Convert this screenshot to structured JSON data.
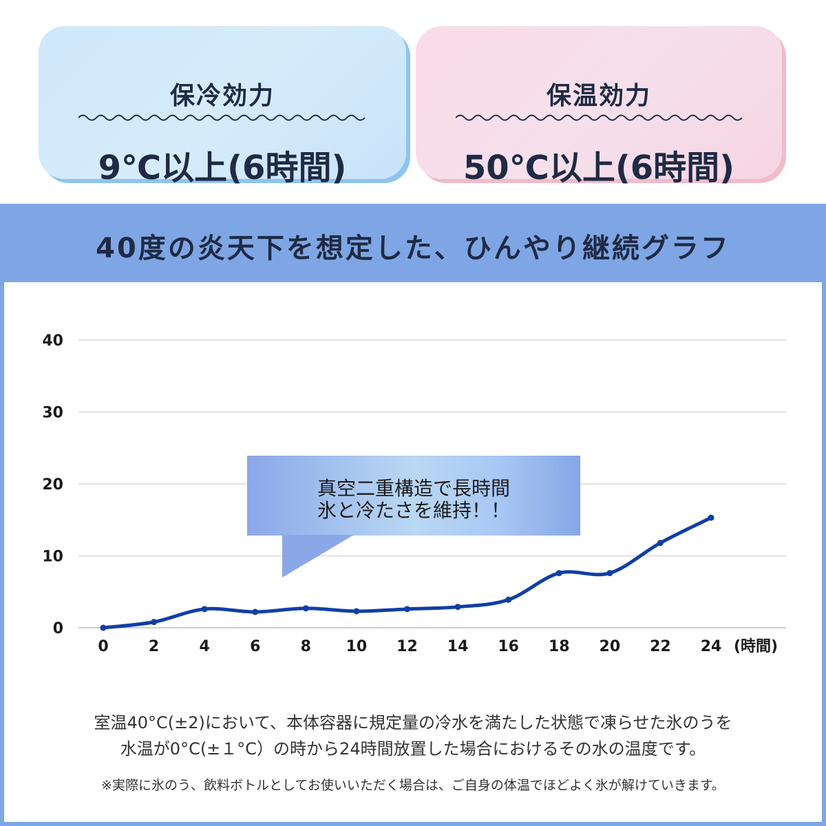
{
  "cards": {
    "cold": {
      "title": "保冷効力",
      "value": "9℃以上(6時間)"
    },
    "warm": {
      "title": "保温効力",
      "value": "50℃以上(6時間)"
    }
  },
  "panel": {
    "title": "40度の炎天下を想定した、ひんやり継続グラフ"
  },
  "callout": {
    "line1": "真空二重構造で長時間",
    "line2": "氷と冷たさを維持！！"
  },
  "notes": {
    "line1": "室温40°C(±2)において、本体容器に規定量の冷水を満たした状態で凍らせた氷のうを",
    "line2": "水温が0°C(±１°C）の時から24時間放置した場合におけるその水の温度です。",
    "small": "※実際に氷のう、飲料ボトルとしてお使いいただく場合は、ご自身の体温でほどよく氷が解けていきます。"
  },
  "colors": {
    "line": "#0f3fa6",
    "grid": "#d9d9d9",
    "panel": "#7fa6e4",
    "cold_card": "#cfe7fb",
    "warm_card": "#fadbe7"
  },
  "chart_data": {
    "type": "line",
    "x": [
      0,
      2,
      4,
      6,
      8,
      10,
      12,
      14,
      16,
      18,
      20,
      22,
      24
    ],
    "series": [
      {
        "values": [
          0,
          0.8,
          2.6,
          2.2,
          2.7,
          2.3,
          2.6,
          2.9,
          3.9,
          7.6,
          7.6,
          11.8,
          15.3
        ]
      }
    ],
    "xticks": [
      "0",
      "2",
      "4",
      "6",
      "8",
      "10",
      "12",
      "14",
      "16",
      "18",
      "20",
      "22",
      "24"
    ],
    "yticks": [
      "0",
      "10",
      "20",
      "30",
      "40"
    ],
    "xunit": "(時間)",
    "xlim": [
      0,
      24
    ],
    "ylim": [
      0,
      40
    ],
    "grid": true,
    "title": "",
    "xlabel": "",
    "ylabel": ""
  }
}
